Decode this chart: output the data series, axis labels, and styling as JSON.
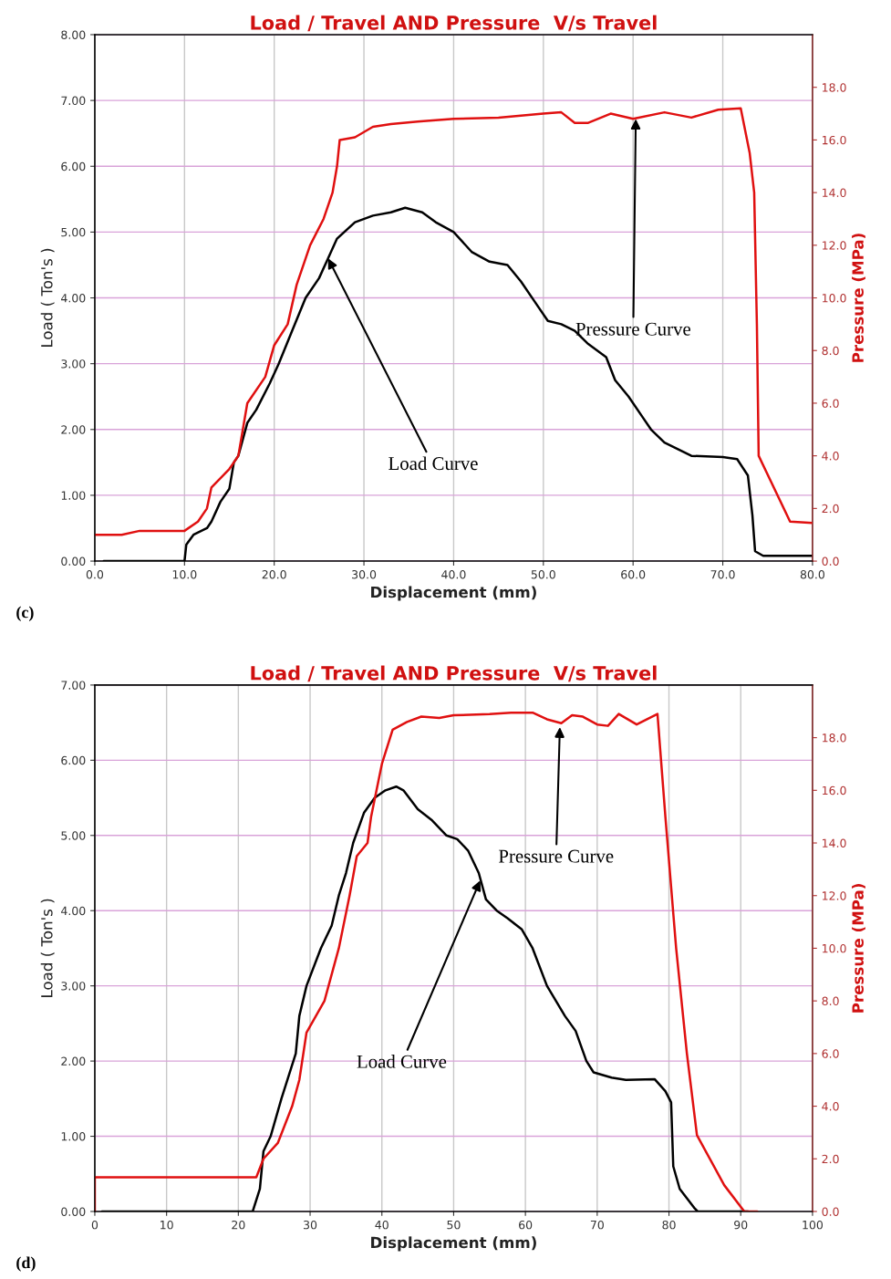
{
  "chart_data": [
    {
      "type": "line",
      "title": "Load / Travel AND Pressure  V/s Travel",
      "xlabel": "Displacement (mm)",
      "ylabel": "Load ( Ton's )",
      "y2label": "Pressure (MPa)",
      "xlim": [
        0,
        80
      ],
      "xticks": [
        {
          "value": 0,
          "label": "0.0"
        },
        {
          "value": 10,
          "label": "10.0"
        },
        {
          "value": 20,
          "label": "20.0"
        },
        {
          "value": 30,
          "label": "30.0"
        },
        {
          "value": 40,
          "label": "40.0"
        },
        {
          "value": 50,
          "label": "50.0"
        },
        {
          "value": 60,
          "label": "60.0"
        },
        {
          "value": 70,
          "label": "70.0"
        },
        {
          "value": 80,
          "label": "80.0"
        }
      ],
      "ylim": [
        0,
        8
      ],
      "yticks": [
        {
          "value": 0,
          "label": "0.00"
        },
        {
          "value": 1,
          "label": "1.00"
        },
        {
          "value": 2,
          "label": "2.00"
        },
        {
          "value": 3,
          "label": "3.00"
        },
        {
          "value": 4,
          "label": "4.00"
        },
        {
          "value": 5,
          "label": "5.00"
        },
        {
          "value": 6,
          "label": "6.00"
        },
        {
          "value": 7,
          "label": "7.00"
        },
        {
          "value": 8,
          "label": "8.00"
        }
      ],
      "y2lim": [
        0,
        20
      ],
      "y2ticks": [
        {
          "value": 0,
          "label": "0.0"
        },
        {
          "value": 2,
          "label": "2.0"
        },
        {
          "value": 4,
          "label": "4.0"
        },
        {
          "value": 6,
          "label": "6.0"
        },
        {
          "value": 8,
          "label": "8.0"
        },
        {
          "value": 10,
          "label": "10.0"
        },
        {
          "value": 12,
          "label": "12.0"
        },
        {
          "value": 14,
          "label": "14.0"
        },
        {
          "value": 16,
          "label": "16.0"
        },
        {
          "value": 18,
          "label": "18.0"
        }
      ],
      "grid": true,
      "series": [
        {
          "color": "#000000",
          "x": [
            1,
            10,
            10.2,
            11,
            12.5,
            13,
            14,
            15,
            15.5,
            16,
            17,
            18,
            19.5,
            20.5,
            22,
            23.5,
            25,
            26,
            27,
            29,
            31,
            33,
            34.6,
            36.5,
            38,
            40,
            42,
            44,
            46,
            47.5,
            49,
            50.5,
            52,
            53.5,
            55,
            57,
            58,
            59.5,
            61,
            62,
            63.5,
            65,
            66.5,
            70,
            71.6,
            72.8,
            73.3,
            73.6,
            74.5,
            80
          ],
          "values": [
            0,
            0,
            0.25,
            0.4,
            0.5,
            0.6,
            0.9,
            1.1,
            1.5,
            1.6,
            2.1,
            2.3,
            2.7,
            3.0,
            3.5,
            4.0,
            4.3,
            4.6,
            4.9,
            5.15,
            5.25,
            5.3,
            5.37,
            5.3,
            5.15,
            5.0,
            4.7,
            4.55,
            4.5,
            4.25,
            3.95,
            3.65,
            3.6,
            3.5,
            3.3,
            3.1,
            2.75,
            2.5,
            2.2,
            2.0,
            1.8,
            1.7,
            1.6,
            1.58,
            1.55,
            1.3,
            0.7,
            0.15,
            0.08,
            0.08
          ]
        },
        {
          "color": "#e01010",
          "axis": "y2",
          "x": [
            0,
            3,
            5,
            10,
            11.5,
            12.5,
            13,
            15,
            16,
            17,
            19,
            20,
            21.5,
            22.5,
            24,
            25.5,
            26.5,
            27,
            27.3,
            29,
            31,
            33,
            36,
            40,
            45,
            50,
            52,
            53.5,
            55,
            57.5,
            60,
            63.5,
            66.5,
            69.5,
            72,
            73,
            73.5,
            73.8,
            74,
            77.5,
            80
          ],
          "values": [
            1.0,
            1.0,
            1.15,
            1.15,
            1.5,
            2.0,
            2.8,
            3.5,
            4.0,
            6.0,
            7.0,
            8.2,
            9.0,
            10.5,
            12.0,
            13.0,
            14.0,
            15.0,
            16.0,
            16.1,
            16.5,
            16.6,
            16.7,
            16.8,
            16.85,
            17.0,
            17.05,
            16.65,
            16.65,
            17.0,
            16.8,
            17.05,
            16.85,
            17.15,
            17.2,
            15.5,
            14.0,
            9.0,
            4.0,
            1.5,
            1.45
          ]
        }
      ],
      "annotations": [
        {
          "text": "Load Curve",
          "x": 26,
          "y": 4.6
        },
        {
          "text": "Pressure Curve",
          "x": 60.3,
          "y": 6.72
        },
        "(c)"
      ]
    },
    {
      "type": "line",
      "title": "Load / Travel AND Pressure  V/s Travel",
      "xlabel": "Displacement (mm)",
      "ylabel": "Load ( Ton's )",
      "y2label": "Pressure (MPa)",
      "xlim": [
        0,
        100
      ],
      "xticks": [
        0,
        10,
        20,
        30,
        40,
        50,
        60,
        70,
        80,
        90,
        100
      ],
      "ylim": [
        0,
        7
      ],
      "yticks": [
        {
          "value": 0,
          "label": "0.00"
        },
        {
          "value": 1,
          "label": "1.00"
        },
        {
          "value": 2,
          "label": "2.00"
        },
        {
          "value": 3,
          "label": "3.00"
        },
        {
          "value": 4,
          "label": "4.00"
        },
        {
          "value": 5,
          "label": "5.00"
        },
        {
          "value": 6,
          "label": "6.00"
        },
        {
          "value": 7,
          "label": "7.00"
        }
      ],
      "y2lim": [
        0,
        20
      ],
      "y2ticks": [
        {
          "value": 0,
          "label": "0.0"
        },
        {
          "value": 2,
          "label": "2.0"
        },
        {
          "value": 4,
          "label": "4.0"
        },
        {
          "value": 6,
          "label": "6.0"
        },
        {
          "value": 8,
          "label": "8.0"
        },
        {
          "value": 10,
          "label": "10.0"
        },
        {
          "value": 12,
          "label": "12.0"
        },
        {
          "value": 14,
          "label": "14.0"
        },
        {
          "value": 16,
          "label": "16.0"
        },
        {
          "value": 18,
          "label": "18.0"
        }
      ],
      "grid": true,
      "series": [
        {
          "color": "#000000",
          "x": [
            1,
            22,
            23,
            23.5,
            24.5,
            26,
            27,
            28,
            28.5,
            29.5,
            31.5,
            33,
            34,
            35,
            36,
            37.5,
            39,
            40.5,
            42,
            43,
            45,
            47,
            49,
            50.5,
            52,
            53.5,
            54.5,
            56,
            57.5,
            59.5,
            61,
            63,
            65.5,
            67,
            68.5,
            69.5,
            72,
            74,
            78,
            79.5,
            80.3,
            80.6,
            81.5,
            83.5,
            84,
            91
          ],
          "values": [
            0,
            0,
            0.3,
            0.8,
            1.0,
            1.5,
            1.8,
            2.1,
            2.6,
            3.0,
            3.5,
            3.8,
            4.2,
            4.5,
            4.9,
            5.3,
            5.5,
            5.6,
            5.65,
            5.6,
            5.35,
            5.2,
            5.0,
            4.95,
            4.8,
            4.5,
            4.15,
            4.0,
            3.9,
            3.75,
            3.5,
            3.0,
            2.6,
            2.4,
            2.0,
            1.85,
            1.78,
            1.75,
            1.76,
            1.6,
            1.45,
            0.6,
            0.3,
            0.05,
            0,
            0
          ]
        },
        {
          "color": "#e01010",
          "axis": "y2",
          "x": [
            0,
            0,
            22.5,
            23.5,
            25.5,
            27.5,
            28.5,
            29.5,
            32,
            34,
            35.5,
            36.5,
            38,
            38.5,
            40,
            41.5,
            43.5,
            45.5,
            48,
            50,
            55,
            58,
            61,
            63,
            65,
            66.5,
            68,
            70,
            71.5,
            73,
            75.5,
            78.4,
            79.5,
            81,
            82.5,
            83.9,
            87.7,
            90.5,
            92.3
          ],
          "values": [
            0,
            1.3,
            1.3,
            2.0,
            2.6,
            4.0,
            5.0,
            6.8,
            8.0,
            10.0,
            12.0,
            13.5,
            14.0,
            15.0,
            17.0,
            18.3,
            18.6,
            18.8,
            18.75,
            18.85,
            18.9,
            18.95,
            18.95,
            18.7,
            18.55,
            18.85,
            18.8,
            18.5,
            18.45,
            18.9,
            18.5,
            18.9,
            15.0,
            10.0,
            6.0,
            2.9,
            1.0,
            0,
            0
          ]
        }
      ],
      "annotations": [
        {
          "text": "Load Curve",
          "x": 53.7,
          "y": 4.4
        },
        {
          "text": "Pressure Curve",
          "x": 64.8,
          "y": 6.44
        },
        "(d)"
      ]
    }
  ]
}
